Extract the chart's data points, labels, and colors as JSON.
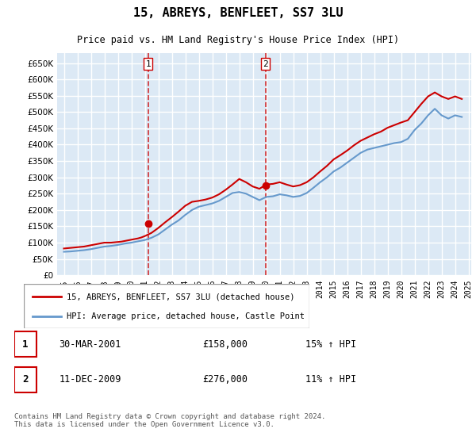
{
  "title": "15, ABREYS, BENFLEET, SS7 3LU",
  "subtitle": "Price paid vs. HM Land Registry's House Price Index (HPI)",
  "legend_line1": "15, ABREYS, BENFLEET, SS7 3LU (detached house)",
  "legend_line2": "HPI: Average price, detached house, Castle Point",
  "footer": "Contains HM Land Registry data © Crown copyright and database right 2024.\nThis data is licensed under the Open Government Licence v3.0.",
  "annotation1": {
    "num": "1",
    "date": "30-MAR-2001",
    "price": "£158,000",
    "hpi": "15% ↑ HPI"
  },
  "annotation2": {
    "num": "2",
    "date": "11-DEC-2009",
    "price": "£276,000",
    "hpi": "11% ↑ HPI"
  },
  "ylim": [
    0,
    680000
  ],
  "yticks": [
    0,
    50000,
    100000,
    150000,
    200000,
    250000,
    300000,
    350000,
    400000,
    450000,
    500000,
    550000,
    600000,
    650000
  ],
  "line_color_red": "#cc0000",
  "line_color_blue": "#6699cc",
  "vline_color": "#cc0000",
  "background_color": "#ffffff",
  "plot_bg_color": "#dce9f5",
  "grid_color": "#ffffff",
  "ann_vline_x1": 2001.24,
  "ann_vline_x2": 2009.95,
  "hpi_data": {
    "years": [
      1995.0,
      1995.5,
      1996.0,
      1996.5,
      1997.0,
      1997.5,
      1998.0,
      1998.5,
      1999.0,
      1999.5,
      2000.0,
      2000.5,
      2001.0,
      2001.5,
      2002.0,
      2002.5,
      2003.0,
      2003.5,
      2004.0,
      2004.5,
      2005.0,
      2005.5,
      2006.0,
      2006.5,
      2007.0,
      2007.5,
      2008.0,
      2008.5,
      2009.0,
      2009.5,
      2010.0,
      2010.5,
      2011.0,
      2011.5,
      2012.0,
      2012.5,
      2013.0,
      2013.5,
      2014.0,
      2014.5,
      2015.0,
      2015.5,
      2016.0,
      2016.5,
      2017.0,
      2017.5,
      2018.0,
      2018.5,
      2019.0,
      2019.5,
      2020.0,
      2020.5,
      2021.0,
      2021.5,
      2022.0,
      2022.5,
      2023.0,
      2023.5,
      2024.0,
      2024.5
    ],
    "values": [
      72000,
      73000,
      75000,
      77000,
      80000,
      84000,
      88000,
      90000,
      93000,
      97000,
      100000,
      104000,
      108000,
      115000,
      125000,
      140000,
      155000,
      168000,
      185000,
      200000,
      210000,
      215000,
      220000,
      228000,
      240000,
      252000,
      255000,
      250000,
      240000,
      230000,
      240000,
      242000,
      248000,
      245000,
      240000,
      243000,
      252000,
      268000,
      285000,
      300000,
      318000,
      330000,
      345000,
      360000,
      375000,
      385000,
      390000,
      395000,
      400000,
      405000,
      408000,
      418000,
      445000,
      465000,
      490000,
      510000,
      490000,
      480000,
      490000,
      485000
    ]
  },
  "price_data": {
    "years": [
      1995.0,
      1995.25,
      1995.5,
      1995.75,
      1996.0,
      1996.25,
      1996.5,
      1996.75,
      1997.0,
      1997.25,
      1997.5,
      1997.75,
      1998.0,
      1998.25,
      1998.5,
      1998.75,
      1999.0,
      1999.25,
      1999.5,
      1999.75,
      2000.0,
      2000.25,
      2000.5,
      2000.75,
      2001.0,
      2001.5,
      2002.0,
      2002.5,
      2003.0,
      2003.5,
      2004.0,
      2004.5,
      2005.0,
      2005.5,
      2006.0,
      2006.5,
      2007.0,
      2007.5,
      2008.0,
      2008.5,
      2009.0,
      2009.5,
      2010.0,
      2010.5,
      2011.0,
      2011.5,
      2012.0,
      2012.5,
      2013.0,
      2013.5,
      2014.0,
      2014.5,
      2015.0,
      2015.5,
      2016.0,
      2016.5,
      2017.0,
      2017.5,
      2018.0,
      2018.5,
      2019.0,
      2019.5,
      2020.0,
      2020.5,
      2021.0,
      2021.5,
      2022.0,
      2022.5,
      2023.0,
      2023.5,
      2024.0,
      2024.5
    ],
    "values": [
      82000,
      83000,
      84000,
      85000,
      86000,
      87000,
      88000,
      90000,
      92000,
      94000,
      96000,
      98000,
      100000,
      100000,
      100000,
      101000,
      102000,
      103000,
      105000,
      107000,
      109000,
      111000,
      113000,
      116000,
      120000,
      130000,
      145000,
      162000,
      178000,
      195000,
      213000,
      225000,
      228000,
      232000,
      238000,
      248000,
      262000,
      278000,
      295000,
      285000,
      272000,
      265000,
      278000,
      280000,
      285000,
      278000,
      272000,
      276000,
      285000,
      300000,
      318000,
      335000,
      355000,
      368000,
      382000,
      398000,
      412000,
      422000,
      432000,
      440000,
      452000,
      460000,
      468000,
      475000,
      500000,
      525000,
      548000,
      560000,
      548000,
      540000,
      548000,
      540000
    ]
  },
  "sale1": {
    "year": 2001.24,
    "price": 158000
  },
  "sale2": {
    "year": 2009.95,
    "price": 276000
  },
  "xmin": 1994.5,
  "xmax": 2025.2
}
